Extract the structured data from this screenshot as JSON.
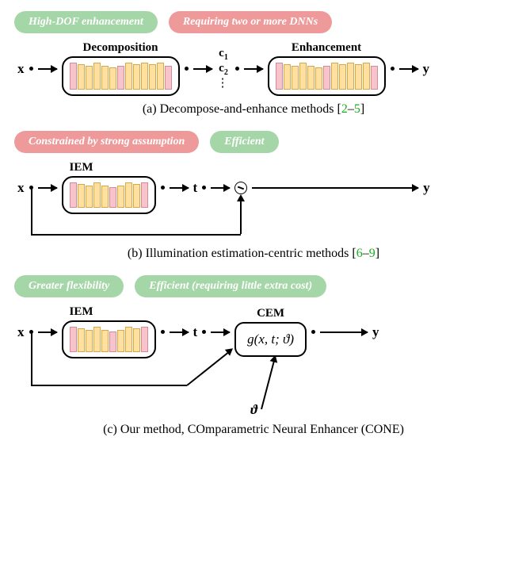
{
  "panel_a": {
    "badges": [
      {
        "text": "High-DOF enhancement",
        "kind": "green"
      },
      {
        "text": "Requiring two or more DNNs",
        "kind": "red"
      }
    ],
    "module1_label": "Decomposition",
    "module2_label": "Enhancement",
    "c1": "c",
    "c1_sub": "1",
    "c2": "c",
    "c2_sub": "2",
    "x": "x",
    "y": "y",
    "vdots": "⋮",
    "caption_prefix": "(a) Decompose-and-enhance methods [",
    "caption_link1": "2",
    "caption_dash": "–",
    "caption_link2": "5",
    "caption_suffix": "]"
  },
  "panel_b": {
    "badges": [
      {
        "text": "Constrained by strong assumption",
        "kind": "red"
      },
      {
        "text": "Efficient",
        "kind": "green"
      }
    ],
    "module_label": "IEM",
    "x": "x",
    "t": "t",
    "y": "y",
    "caption_prefix": "(b) Illumination estimation-centric methods [",
    "caption_link1": "6",
    "caption_dash": "–",
    "caption_link2": "9",
    "caption_suffix": "]"
  },
  "panel_c": {
    "badges": [
      {
        "text": "Greater flexibility",
        "kind": "green"
      },
      {
        "text": "Efficient (requiring little extra cost)",
        "kind": "green"
      }
    ],
    "module_label": "IEM",
    "cem_label": "CEM",
    "cem_expr": "g(x, t; ϑ)",
    "x": "x",
    "t": "t",
    "y": "y",
    "theta": "ϑ",
    "caption": "(c) Our method, COmparametric Neural Enhancer (CONE)"
  },
  "style": {
    "layer_heights_large": [
      34,
      32,
      30,
      34,
      30,
      28,
      30,
      34,
      32,
      34,
      32,
      34,
      30
    ],
    "layer_pink_idx_large": [
      0,
      6,
      12
    ],
    "layer_heights_small": [
      32,
      30,
      28,
      32,
      28,
      26,
      28,
      32,
      30,
      32
    ],
    "layer_pink_idx_small": [
      0,
      5,
      9
    ],
    "colors": {
      "green_badge": "#a5d6a7",
      "red_badge": "#ef9a9a",
      "layer_yellow": "#ffe09f",
      "layer_pink": "#f8c4cc",
      "link_green": "#1aaf1a",
      "background": "#ffffff"
    },
    "badge_fontsize": 14,
    "module_label_fontsize": 15,
    "caption_fontsize": 16,
    "symbol_fontsize": 17
  }
}
